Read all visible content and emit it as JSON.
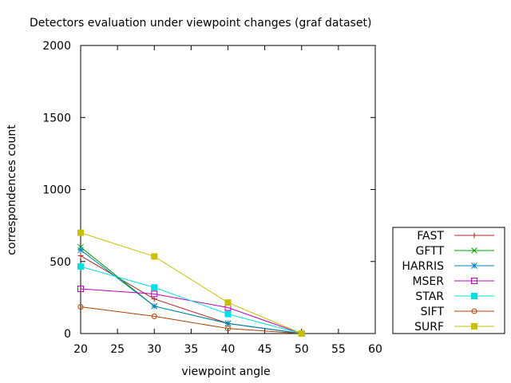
{
  "chart_data": {
    "type": "line",
    "title": "Detectors evaluation under viewpoint changes (graf dataset)",
    "xlabel": "viewpoint angle",
    "ylabel": "correspondences count",
    "xlim": [
      20,
      60
    ],
    "ylim": [
      0,
      2000
    ],
    "xticks": [
      "20",
      "25",
      "30",
      "35",
      "40",
      "45",
      "50",
      "55",
      "60"
    ],
    "yticks": [
      "0",
      "500",
      "1000",
      "1500",
      "2000"
    ],
    "grid": false,
    "legend": "outside-bottom-right",
    "x": [
      20,
      30,
      40,
      50
    ],
    "series": [
      {
        "name": "FAST",
        "color": "#b22222",
        "marker": "plus",
        "values": [
          540,
          240,
          70,
          0
        ]
      },
      {
        "name": "GFTT",
        "color": "#00a000",
        "marker": "cross",
        "values": [
          600,
          190,
          70,
          0
        ]
      },
      {
        "name": "HARRIS",
        "color": "#0080c0",
        "marker": "star",
        "values": [
          580,
          190,
          70,
          0
        ]
      },
      {
        "name": "MSER",
        "color": "#c000c0",
        "marker": "open-square",
        "values": [
          310,
          275,
          180,
          0
        ]
      },
      {
        "name": "STAR",
        "color": "#00e0e0",
        "marker": "filled-square",
        "values": [
          465,
          320,
          135,
          0
        ]
      },
      {
        "name": "SIFT",
        "color": "#b04000",
        "marker": "open-circle",
        "values": [
          185,
          120,
          35,
          0
        ]
      },
      {
        "name": "SURF",
        "color": "#c8c000",
        "marker": "filled-square",
        "values": [
          700,
          535,
          215,
          0
        ]
      }
    ]
  }
}
